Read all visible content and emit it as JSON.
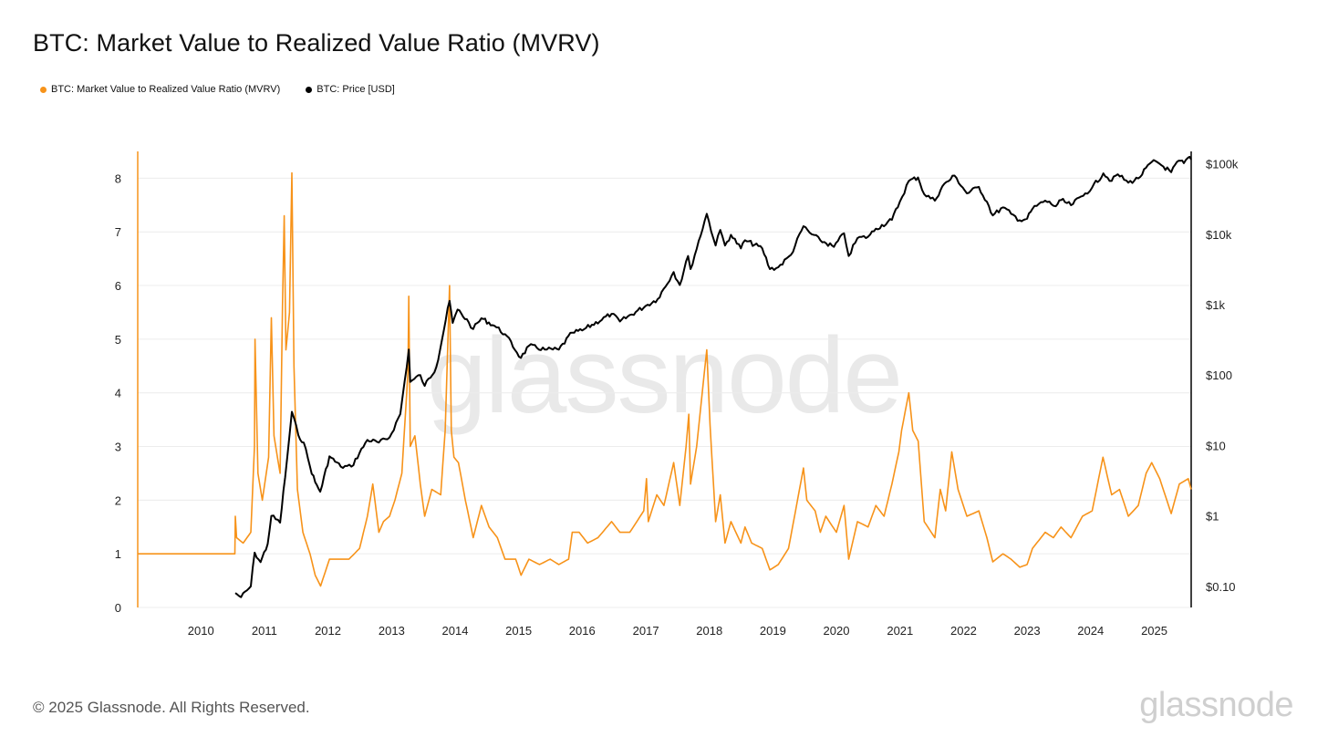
{
  "title": "BTC: Market Value to Realized Value Ratio (MVRV)",
  "footer": "© 2025 Glassnode. All Rights Reserved.",
  "brand": "glassnode",
  "watermark": "glassnode",
  "colors": {
    "mvrv": "#f7931a",
    "price": "#000000",
    "grid": "#ececec",
    "axis": "#222222"
  },
  "chart_data": {
    "type": "line",
    "title": "BTC: Market Value to Realized Value Ratio (MVRV)",
    "legend_position": "top-left",
    "grid": true,
    "x_range": [
      "2009-01-03",
      "2025-08-01"
    ],
    "x_ticks": [
      "2010",
      "2011",
      "2012",
      "2013",
      "2014",
      "2015",
      "2016",
      "2017",
      "2018",
      "2019",
      "2020",
      "2021",
      "2022",
      "2023",
      "2024",
      "2025"
    ],
    "y_left": {
      "min": 0,
      "max": 8.5,
      "ticks": [
        "0",
        "1",
        "2",
        "3",
        "4",
        "5",
        "6",
        "7",
        "8"
      ]
    },
    "y_right": {
      "scale": "log",
      "min": 0.05,
      "max": 150000,
      "ticks": [
        {
          "value": 0.1,
          "label": "$0.10"
        },
        {
          "value": 1,
          "label": "$1"
        },
        {
          "value": 10,
          "label": "$10"
        },
        {
          "value": 100,
          "label": "$100"
        },
        {
          "value": 1000,
          "label": "$1k"
        },
        {
          "value": 10000,
          "label": "$10k"
        },
        {
          "value": 100000,
          "label": "$100k"
        }
      ]
    },
    "series": [
      {
        "name": "BTC: Market Value to Realized Value Ratio (MVRV)",
        "axis": "left",
        "color": "#f7931a",
        "points": [
          [
            "2009-01-03",
            1.0
          ],
          [
            "2010-07-15",
            1.0
          ],
          [
            "2010-07-18",
            1.7
          ],
          [
            "2010-07-25",
            1.3
          ],
          [
            "2010-09-01",
            1.2
          ],
          [
            "2010-10-15",
            1.4
          ],
          [
            "2010-11-05",
            3.0
          ],
          [
            "2010-11-08",
            5.0
          ],
          [
            "2010-11-25",
            2.5
          ],
          [
            "2010-12-20",
            2.0
          ],
          [
            "2011-01-25",
            2.8
          ],
          [
            "2011-02-10",
            5.4
          ],
          [
            "2011-02-25",
            3.2
          ],
          [
            "2011-04-01",
            2.5
          ],
          [
            "2011-04-15",
            5.6
          ],
          [
            "2011-04-25",
            7.3
          ],
          [
            "2011-05-05",
            4.8
          ],
          [
            "2011-05-25",
            5.5
          ],
          [
            "2011-06-08",
            8.1
          ],
          [
            "2011-06-20",
            4.5
          ],
          [
            "2011-07-10",
            2.2
          ],
          [
            "2011-08-10",
            1.4
          ],
          [
            "2011-09-20",
            1.0
          ],
          [
            "2011-10-20",
            0.6
          ],
          [
            "2011-11-20",
            0.4
          ],
          [
            "2012-01-10",
            0.9
          ],
          [
            "2012-03-01",
            0.9
          ],
          [
            "2012-05-01",
            0.9
          ],
          [
            "2012-07-01",
            1.1
          ],
          [
            "2012-08-15",
            1.7
          ],
          [
            "2012-09-15",
            2.3
          ],
          [
            "2012-10-20",
            1.4
          ],
          [
            "2012-11-15",
            1.6
          ],
          [
            "2012-12-20",
            1.7
          ],
          [
            "2013-01-20",
            2.0
          ],
          [
            "2013-03-01",
            2.5
          ],
          [
            "2013-04-05",
            4.4
          ],
          [
            "2013-04-10",
            5.8
          ],
          [
            "2013-04-18",
            3.0
          ],
          [
            "2013-05-15",
            3.2
          ],
          [
            "2013-06-15",
            2.3
          ],
          [
            "2013-07-10",
            1.7
          ],
          [
            "2013-08-20",
            2.2
          ],
          [
            "2013-10-10",
            2.1
          ],
          [
            "2013-11-05",
            3.3
          ],
          [
            "2013-11-30",
            6.0
          ],
          [
            "2013-12-10",
            3.3
          ],
          [
            "2013-12-25",
            2.8
          ],
          [
            "2014-01-20",
            2.7
          ],
          [
            "2014-03-01",
            2.0
          ],
          [
            "2014-04-15",
            1.3
          ],
          [
            "2014-06-01",
            1.9
          ],
          [
            "2014-07-15",
            1.5
          ],
          [
            "2014-09-01",
            1.3
          ],
          [
            "2014-10-15",
            0.9
          ],
          [
            "2014-12-15",
            0.9
          ],
          [
            "2015-01-15",
            0.6
          ],
          [
            "2015-03-01",
            0.9
          ],
          [
            "2015-05-01",
            0.8
          ],
          [
            "2015-07-01",
            0.9
          ],
          [
            "2015-08-20",
            0.8
          ],
          [
            "2015-10-15",
            0.9
          ],
          [
            "2015-11-05",
            1.4
          ],
          [
            "2015-12-15",
            1.4
          ],
          [
            "2016-02-01",
            1.2
          ],
          [
            "2016-04-01",
            1.3
          ],
          [
            "2016-06-18",
            1.6
          ],
          [
            "2016-08-05",
            1.4
          ],
          [
            "2016-10-01",
            1.4
          ],
          [
            "2016-12-20",
            1.8
          ],
          [
            "2017-01-05",
            2.4
          ],
          [
            "2017-01-15",
            1.6
          ],
          [
            "2017-03-05",
            2.1
          ],
          [
            "2017-04-15",
            1.9
          ],
          [
            "2017-06-10",
            2.7
          ],
          [
            "2017-07-15",
            1.9
          ],
          [
            "2017-08-20",
            3.0
          ],
          [
            "2017-09-05",
            3.6
          ],
          [
            "2017-09-15",
            2.3
          ],
          [
            "2017-10-20",
            3.0
          ],
          [
            "2017-12-17",
            4.8
          ],
          [
            "2018-01-05",
            3.4
          ],
          [
            "2018-02-06",
            1.6
          ],
          [
            "2018-03-05",
            2.1
          ],
          [
            "2018-04-01",
            1.2
          ],
          [
            "2018-05-05",
            1.6
          ],
          [
            "2018-07-01",
            1.2
          ],
          [
            "2018-07-25",
            1.5
          ],
          [
            "2018-09-01",
            1.2
          ],
          [
            "2018-11-01",
            1.1
          ],
          [
            "2018-12-15",
            0.7
          ],
          [
            "2019-02-01",
            0.8
          ],
          [
            "2019-04-01",
            1.1
          ],
          [
            "2019-06-26",
            2.6
          ],
          [
            "2019-07-15",
            2.0
          ],
          [
            "2019-09-01",
            1.8
          ],
          [
            "2019-10-01",
            1.4
          ],
          [
            "2019-11-01",
            1.7
          ],
          [
            "2020-01-01",
            1.4
          ],
          [
            "2020-02-14",
            1.9
          ],
          [
            "2020-03-12",
            0.9
          ],
          [
            "2020-05-01",
            1.6
          ],
          [
            "2020-07-01",
            1.5
          ],
          [
            "2020-08-15",
            1.9
          ],
          [
            "2020-10-01",
            1.7
          ],
          [
            "2020-11-15",
            2.3
          ],
          [
            "2020-12-25",
            2.9
          ],
          [
            "2021-01-10",
            3.3
          ],
          [
            "2021-02-20",
            4.0
          ],
          [
            "2021-03-15",
            3.3
          ],
          [
            "2021-04-15",
            3.1
          ],
          [
            "2021-05-20",
            1.6
          ],
          [
            "2021-07-20",
            1.3
          ],
          [
            "2021-08-20",
            2.2
          ],
          [
            "2021-09-20",
            1.8
          ],
          [
            "2021-10-25",
            2.9
          ],
          [
            "2021-11-30",
            2.2
          ],
          [
            "2022-01-20",
            1.7
          ],
          [
            "2022-03-30",
            1.8
          ],
          [
            "2022-05-15",
            1.3
          ],
          [
            "2022-06-18",
            0.85
          ],
          [
            "2022-08-15",
            1.0
          ],
          [
            "2022-10-01",
            0.9
          ],
          [
            "2022-11-20",
            0.75
          ],
          [
            "2023-01-01",
            0.8
          ],
          [
            "2023-02-01",
            1.1
          ],
          [
            "2023-04-15",
            1.4
          ],
          [
            "2023-06-01",
            1.3
          ],
          [
            "2023-07-15",
            1.5
          ],
          [
            "2023-09-10",
            1.3
          ],
          [
            "2023-11-15",
            1.7
          ],
          [
            "2024-01-10",
            1.8
          ],
          [
            "2024-03-12",
            2.8
          ],
          [
            "2024-05-01",
            2.1
          ],
          [
            "2024-06-15",
            2.2
          ],
          [
            "2024-08-05",
            1.7
          ],
          [
            "2024-10-01",
            1.9
          ],
          [
            "2024-11-15",
            2.5
          ],
          [
            "2024-12-17",
            2.7
          ],
          [
            "2025-02-01",
            2.4
          ],
          [
            "2025-04-08",
            1.75
          ],
          [
            "2025-05-25",
            2.3
          ],
          [
            "2025-07-15",
            2.4
          ],
          [
            "2025-08-01",
            2.2
          ]
        ]
      },
      {
        "name": "BTC: Price [USD]",
        "axis": "right",
        "color": "#000000",
        "points": [
          [
            "2010-07-18",
            0.08
          ],
          [
            "2010-08-20",
            0.07
          ],
          [
            "2010-10-15",
            0.1
          ],
          [
            "2010-11-06",
            0.3
          ],
          [
            "2010-12-10",
            0.22
          ],
          [
            "2011-01-20",
            0.4
          ],
          [
            "2011-02-10",
            1.0
          ],
          [
            "2011-04-01",
            0.8
          ],
          [
            "2011-04-30",
            3.5
          ],
          [
            "2011-06-08",
            30
          ],
          [
            "2011-07-15",
            14
          ],
          [
            "2011-08-15",
            11
          ],
          [
            "2011-09-20",
            5
          ],
          [
            "2011-10-20",
            3
          ],
          [
            "2011-11-18",
            2.2
          ],
          [
            "2012-01-10",
            7
          ],
          [
            "2012-03-15",
            5
          ],
          [
            "2012-05-15",
            5
          ],
          [
            "2012-08-15",
            12
          ],
          [
            "2012-10-20",
            11
          ],
          [
            "2012-12-20",
            13
          ],
          [
            "2013-02-20",
            28
          ],
          [
            "2013-04-10",
            230
          ],
          [
            "2013-04-18",
            80
          ],
          [
            "2013-06-15",
            100
          ],
          [
            "2013-07-10",
            70
          ],
          [
            "2013-09-15",
            130
          ],
          [
            "2013-11-30",
            1130
          ],
          [
            "2013-12-18",
            550
          ],
          [
            "2014-01-15",
            850
          ],
          [
            "2014-03-20",
            560
          ],
          [
            "2014-04-15",
            450
          ],
          [
            "2014-06-01",
            640
          ],
          [
            "2014-08-15",
            500
          ],
          [
            "2014-10-15",
            380
          ],
          [
            "2015-01-14",
            175
          ],
          [
            "2015-03-01",
            260
          ],
          [
            "2015-06-01",
            230
          ],
          [
            "2015-08-20",
            230
          ],
          [
            "2015-11-05",
            400
          ],
          [
            "2016-01-01",
            430
          ],
          [
            "2016-06-18",
            740
          ],
          [
            "2016-08-05",
            575
          ],
          [
            "2016-12-31",
            960
          ],
          [
            "2017-03-10",
            1200
          ],
          [
            "2017-06-10",
            2900
          ],
          [
            "2017-07-15",
            1900
          ],
          [
            "2017-09-01",
            4900
          ],
          [
            "2017-09-15",
            3200
          ],
          [
            "2017-12-17",
            19500
          ],
          [
            "2018-02-06",
            6900
          ],
          [
            "2018-03-05",
            11500
          ],
          [
            "2018-04-01",
            6900
          ],
          [
            "2018-05-05",
            9800
          ],
          [
            "2018-07-01",
            6300
          ],
          [
            "2018-07-25",
            8200
          ],
          [
            "2018-11-01",
            6300
          ],
          [
            "2018-12-15",
            3200
          ],
          [
            "2019-02-01",
            3400
          ],
          [
            "2019-04-15",
            5100
          ],
          [
            "2019-06-26",
            13000
          ],
          [
            "2019-08-01",
            10500
          ],
          [
            "2019-10-01",
            8200
          ],
          [
            "2019-12-18",
            6600
          ],
          [
            "2020-02-14",
            10300
          ],
          [
            "2020-03-12",
            4900
          ],
          [
            "2020-05-01",
            8800
          ],
          [
            "2020-07-01",
            9200
          ],
          [
            "2020-08-15",
            12000
          ],
          [
            "2020-11-15",
            16000
          ],
          [
            "2020-12-31",
            29000
          ],
          [
            "2021-02-20",
            57000
          ],
          [
            "2021-04-14",
            64000
          ],
          [
            "2021-05-20",
            37000
          ],
          [
            "2021-07-20",
            30000
          ],
          [
            "2021-09-01",
            48000
          ],
          [
            "2021-11-10",
            68000
          ],
          [
            "2022-01-20",
            38000
          ],
          [
            "2022-03-30",
            47000
          ],
          [
            "2022-05-15",
            29000
          ],
          [
            "2022-06-18",
            18500
          ],
          [
            "2022-08-15",
            24000
          ],
          [
            "2022-10-01",
            19500
          ],
          [
            "2022-11-20",
            15800
          ],
          [
            "2023-01-01",
            16600
          ],
          [
            "2023-02-01",
            23000
          ],
          [
            "2023-04-15",
            30000
          ],
          [
            "2023-06-15",
            25000
          ],
          [
            "2023-07-15",
            30500
          ],
          [
            "2023-09-10",
            25800
          ],
          [
            "2023-12-01",
            38000
          ],
          [
            "2024-01-10",
            46000
          ],
          [
            "2024-03-14",
            73000
          ],
          [
            "2024-05-01",
            57000
          ],
          [
            "2024-06-05",
            71000
          ],
          [
            "2024-08-05",
            54000
          ],
          [
            "2024-10-01",
            62000
          ],
          [
            "2024-12-17",
            106000
          ],
          [
            "2025-01-20",
            105000
          ],
          [
            "2025-04-08",
            76000
          ],
          [
            "2025-05-22",
            111000
          ],
          [
            "2025-06-20",
            102000
          ],
          [
            "2025-07-14",
            122000
          ],
          [
            "2025-08-01",
            115000
          ]
        ]
      }
    ]
  }
}
